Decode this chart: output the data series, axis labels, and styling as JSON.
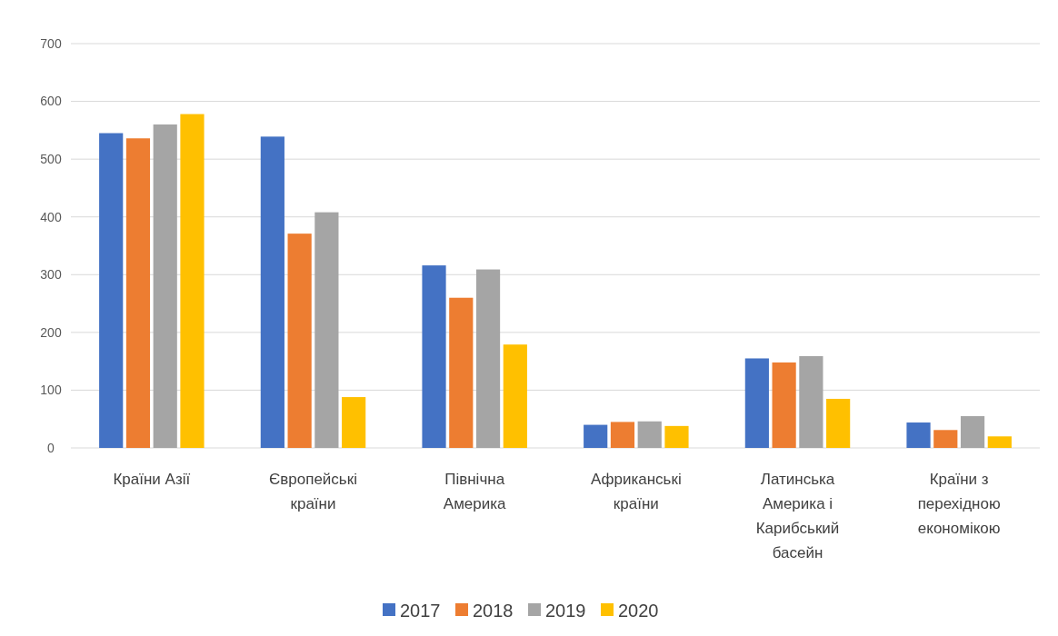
{
  "chart_data": {
    "type": "bar",
    "categories": [
      "Країни Азії",
      "Європейські країни",
      "Північна Америка",
      "Африканські країни",
      "Латинська Америка і Карибський басейн",
      "Країни з перехідною економікою"
    ],
    "series": [
      {
        "name": "2017",
        "color": "#4472c4",
        "values": [
          545,
          539,
          316,
          40,
          155,
          44
        ]
      },
      {
        "name": "2018",
        "color": "#ed7d31",
        "values": [
          536,
          371,
          260,
          45,
          148,
          31
        ]
      },
      {
        "name": "2019",
        "color": "#a5a5a5",
        "values": [
          560,
          408,
          309,
          46,
          159,
          55
        ]
      },
      {
        "name": "2020",
        "color": "#ffc000",
        "values": [
          578,
          88,
          179,
          38,
          85,
          20
        ]
      }
    ],
    "ylim": [
      0,
      700
    ],
    "yticks": [
      0,
      100,
      200,
      300,
      400,
      500,
      600,
      700
    ],
    "grid": "y",
    "legend": "bottom"
  }
}
